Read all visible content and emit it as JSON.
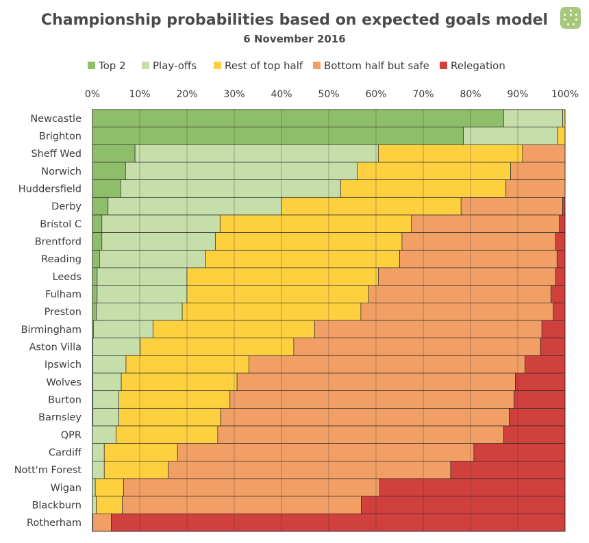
{
  "chart_data": {
    "type": "bar",
    "orientation": "horizontal",
    "stacked": true,
    "title": "Championship probabilities based on expected goals model",
    "subtitle": "6 November 2016",
    "xlim": [
      0,
      100
    ],
    "x_ticks": [
      "0%",
      "10%",
      "20%",
      "30%",
      "40%",
      "50%",
      "60%",
      "70%",
      "80%",
      "90%",
      "100%"
    ],
    "legend_position": "top",
    "grid": true,
    "categories": [
      "Newcastle",
      "Brighton",
      "Sheff Wed",
      "Norwich",
      "Huddersfield",
      "Derby",
      "Bristol C",
      "Brentford",
      "Reading",
      "Leeds",
      "Fulham",
      "Preston",
      "Birmingham",
      "Aston Villa",
      "Ipswich",
      "Wolves",
      "Burton",
      "Barnsley",
      "QPR",
      "Cardiff",
      "Nott'm Forest",
      "Wigan",
      "Blackburn",
      "Rotherham"
    ],
    "series": [
      {
        "name": "Top 2",
        "color": "#8fbe6a",
        "values": [
          87,
          78.5,
          9,
          7,
          6,
          3.3,
          2,
          2,
          1.5,
          1,
          1,
          0.8,
          0.2,
          0.1,
          0.1,
          0.1,
          0.1,
          0.1,
          0,
          0,
          0,
          0,
          0,
          0
        ]
      },
      {
        "name": "Play-offs",
        "color": "#c5deaa",
        "values": [
          12.5,
          20,
          51.5,
          49,
          46.5,
          36.7,
          25,
          24,
          22.5,
          19,
          19,
          18.2,
          12.6,
          10,
          7,
          6,
          5.5,
          5.5,
          5,
          2.5,
          2.5,
          0.6,
          0.8,
          0
        ]
      },
      {
        "name": "Rest of top half",
        "color": "#fdd03f",
        "values": [
          0.5,
          1.5,
          30.5,
          32.5,
          35,
          38,
          40.5,
          39.5,
          41,
          40.5,
          38.5,
          37.8,
          34.2,
          32.5,
          26,
          24.5,
          23.5,
          21.5,
          21.5,
          15.5,
          13.5,
          6,
          5.5,
          0.1
        ]
      },
      {
        "name": "Bottom half but safe",
        "color": "#f29f65",
        "values": [
          0,
          0,
          9,
          11.5,
          12.5,
          21.5,
          31.3,
          32.5,
          33.3,
          37.5,
          38.5,
          40.7,
          48.1,
          52.2,
          58.4,
          58.9,
          60.1,
          61.1,
          60.5,
          62.7,
          59.8,
          54.2,
          50.6,
          3.9
        ]
      },
      {
        "name": "Relegation",
        "color": "#d0403d",
        "values": [
          0,
          0,
          0,
          0,
          0,
          0.5,
          1.2,
          2,
          1.7,
          2,
          3,
          2.5,
          4.9,
          5.2,
          8.5,
          10.5,
          10.8,
          11.8,
          13,
          19.3,
          24.2,
          39.2,
          43.1,
          96
        ]
      }
    ]
  }
}
